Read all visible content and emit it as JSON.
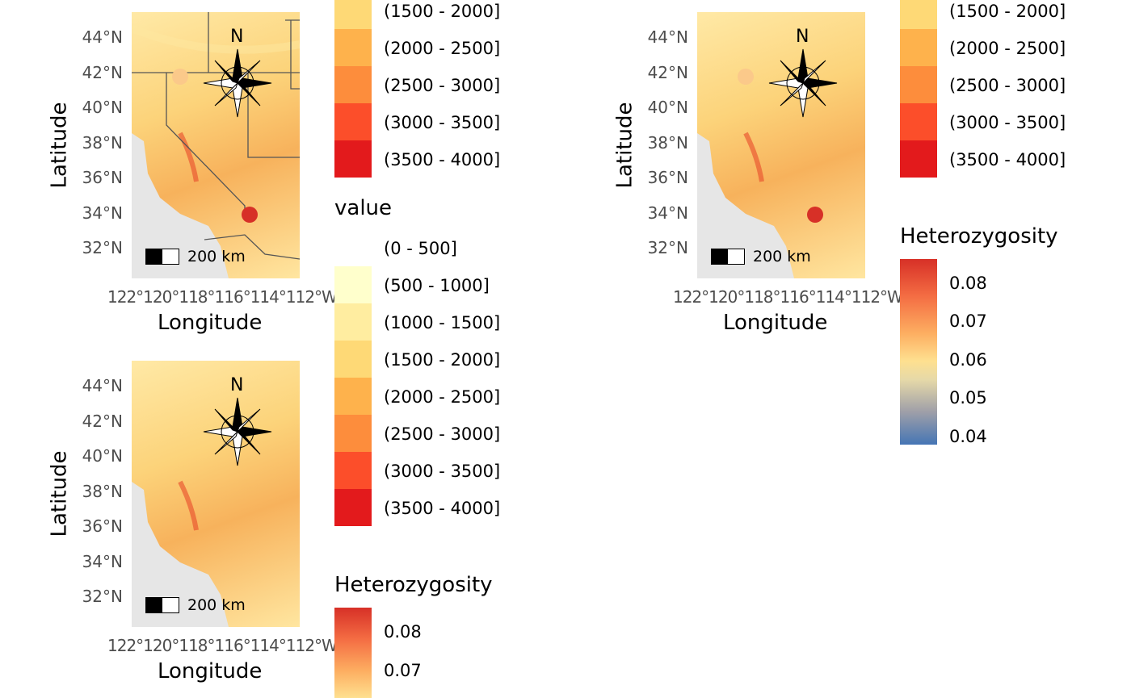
{
  "axes": {
    "ylabel": "Latitude",
    "xlabel": "Longitude",
    "lat_ticks": [
      "44°N",
      "42°N",
      "40°N",
      "38°N",
      "36°N",
      "34°N",
      "32°N"
    ],
    "lon_ticks_text": "122°120°118°116°114°112°W",
    "north_label": "N",
    "scale_label": "200 km"
  },
  "legend": {
    "value_title": "value",
    "classes": [
      {
        "label": "(0 - 500]",
        "color": "#ffffff"
      },
      {
        "label": "(500 - 1000]",
        "color": "#ffffcc"
      },
      {
        "label": "(1000 - 1500]",
        "color": "#ffeda0"
      },
      {
        "label": "(1500 - 2000]",
        "color": "#fed976"
      },
      {
        "label": "(2000 - 2500]",
        "color": "#feb24c"
      },
      {
        "label": "(2500 - 3000]",
        "color": "#fd8d3c"
      },
      {
        "label": "(3000 - 3500]",
        "color": "#fc4e2a"
      },
      {
        "label": "(3500 - 4000]",
        "color": "#e31a1c"
      }
    ],
    "het_title": "Heterozygosity",
    "het_ticks": [
      "0.08",
      "0.07",
      "0.06",
      "0.05",
      "0.04"
    ],
    "het_colors": [
      "#d73027",
      "#f46d43",
      "#fdae61",
      "#fee090",
      "#e6d9a8",
      "#a0a0a8",
      "#4575b4"
    ]
  },
  "points": [
    {
      "name": "north-point",
      "lon": -118.3,
      "lat": 41.8,
      "color": "#fbc98a"
    },
    {
      "name": "south-point",
      "lon": -114.0,
      "lat": 33.9,
      "color": "#d73027"
    }
  ],
  "colors": {
    "ocean": "#e6e6e6",
    "state_border": "#555555"
  }
}
